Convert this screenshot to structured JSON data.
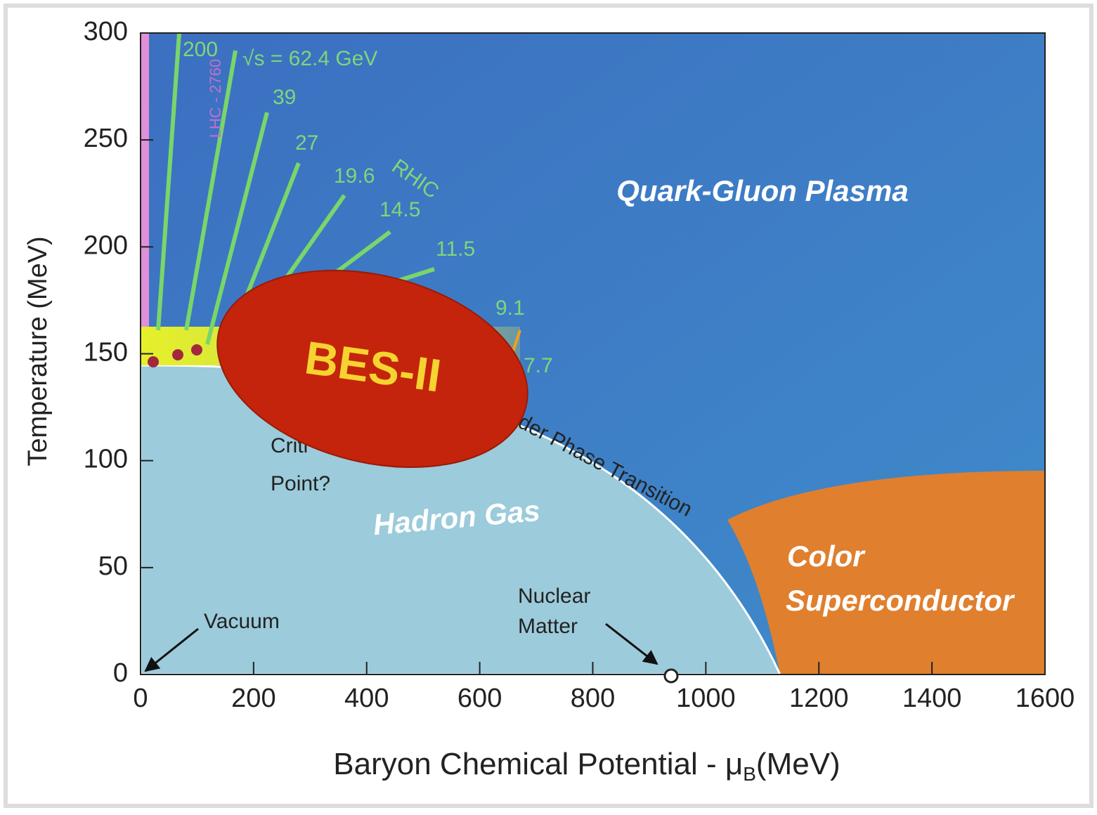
{
  "chart_data": {
    "type": "phase",
    "x_label": {
      "main": "Baryon Chemical Potential - μ",
      "sub": "B",
      "unit": "(MeV)"
    },
    "y_label": "Temperature (MeV)",
    "xlim": [
      0,
      1600
    ],
    "xticks": [
      0,
      200,
      400,
      600,
      800,
      1000,
      1200,
      1400,
      1600
    ],
    "ylim": [
      0,
      300
    ],
    "yticks": [
      0,
      50,
      100,
      150,
      200,
      250,
      300
    ],
    "regions": [
      "Quark-Gluon Plasma",
      "Hadron Gas",
      "Color",
      "Superconductor"
    ],
    "transition_label": "rder Phase Transition",
    "critical_point": [
      "Criti",
      "Point?"
    ],
    "energies": [
      "200",
      "√s = 62.4 GeV",
      "39",
      "27",
      "19.6",
      "14.5",
      "11.5",
      "9.1",
      "7.7"
    ],
    "rhic": "RHIC",
    "lhc": "LHC - 2760",
    "vacuum": "Vacuum",
    "nuclear_matter": [
      "Nuclear",
      "Matter"
    ],
    "badge": "BES-II"
  }
}
